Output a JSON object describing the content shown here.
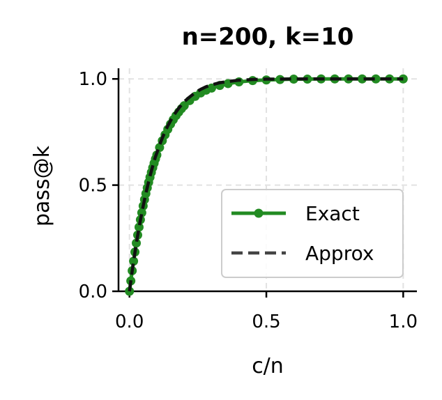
{
  "chart_data": {
    "type": "line",
    "title": "n=200, k=10",
    "xlabel": "c/n",
    "ylabel": "pass@k",
    "xlim": [
      -0.04,
      1.05
    ],
    "ylim": [
      0.0,
      1.05
    ],
    "xticks": [
      0.0,
      0.5,
      1.0
    ],
    "xtick_labels": [
      "0.0",
      "0.5",
      "1.0"
    ],
    "yticks": [
      0.0,
      0.5,
      1.0
    ],
    "ytick_labels": [
      "0.0",
      "0.5",
      "1.0"
    ],
    "grid": true,
    "legend_position": "lower-right",
    "series": [
      {
        "name": "Exact",
        "style": "solid-with-markers",
        "color": "#228b22",
        "x": [
          0.0,
          0.005,
          0.01,
          0.015,
          0.02,
          0.025,
          0.03,
          0.035,
          0.04,
          0.045,
          0.05,
          0.055,
          0.06,
          0.065,
          0.07,
          0.075,
          0.08,
          0.085,
          0.09,
          0.095,
          0.1,
          0.11,
          0.12,
          0.13,
          0.14,
          0.15,
          0.16,
          0.17,
          0.18,
          0.19,
          0.2,
          0.22,
          0.24,
          0.26,
          0.28,
          0.3,
          0.33,
          0.36,
          0.4,
          0.45,
          0.5,
          0.55,
          0.6,
          0.65,
          0.7,
          0.75,
          0.8,
          0.85,
          0.9,
          0.95,
          1.0
        ],
        "y": [
          0.0,
          0.049,
          0.097,
          0.142,
          0.185,
          0.227,
          0.265,
          0.302,
          0.337,
          0.37,
          0.402,
          0.432,
          0.46,
          0.487,
          0.513,
          0.537,
          0.56,
          0.582,
          0.603,
          0.623,
          0.642,
          0.677,
          0.709,
          0.737,
          0.763,
          0.787,
          0.808,
          0.827,
          0.844,
          0.86,
          0.874,
          0.898,
          0.918,
          0.934,
          0.947,
          0.957,
          0.969,
          0.978,
          0.986,
          0.992,
          0.995,
          0.997,
          0.999,
          0.999,
          1.0,
          1.0,
          1.0,
          1.0,
          1.0,
          1.0,
          1.0
        ]
      },
      {
        "name": "Approx",
        "style": "dashed",
        "color": "#111111",
        "x": [
          0.0,
          0.005,
          0.01,
          0.015,
          0.02,
          0.025,
          0.03,
          0.035,
          0.04,
          0.045,
          0.05,
          0.055,
          0.06,
          0.065,
          0.07,
          0.075,
          0.08,
          0.085,
          0.09,
          0.095,
          0.1,
          0.11,
          0.12,
          0.13,
          0.14,
          0.15,
          0.16,
          0.17,
          0.18,
          0.19,
          0.2,
          0.22,
          0.24,
          0.26,
          0.28,
          0.3,
          0.33,
          0.36,
          0.4,
          0.45,
          0.5,
          0.55,
          0.6,
          0.65,
          0.7,
          0.75,
          0.8,
          0.85,
          0.9,
          0.95,
          1.0
        ],
        "y": [
          0.0,
          0.049,
          0.096,
          0.14,
          0.183,
          0.224,
          0.263,
          0.3,
          0.335,
          0.368,
          0.401,
          0.431,
          0.461,
          0.489,
          0.516,
          0.542,
          0.566,
          0.59,
          0.612,
          0.634,
          0.651,
          0.689,
          0.722,
          0.752,
          0.779,
          0.803,
          0.825,
          0.844,
          0.862,
          0.878,
          0.893,
          0.915,
          0.935,
          0.951,
          0.963,
          0.972,
          0.982,
          0.988,
          0.994,
          0.997,
          0.999,
          0.999,
          1.0,
          1.0,
          1.0,
          1.0,
          1.0,
          1.0,
          1.0,
          1.0,
          1.0
        ]
      }
    ]
  }
}
